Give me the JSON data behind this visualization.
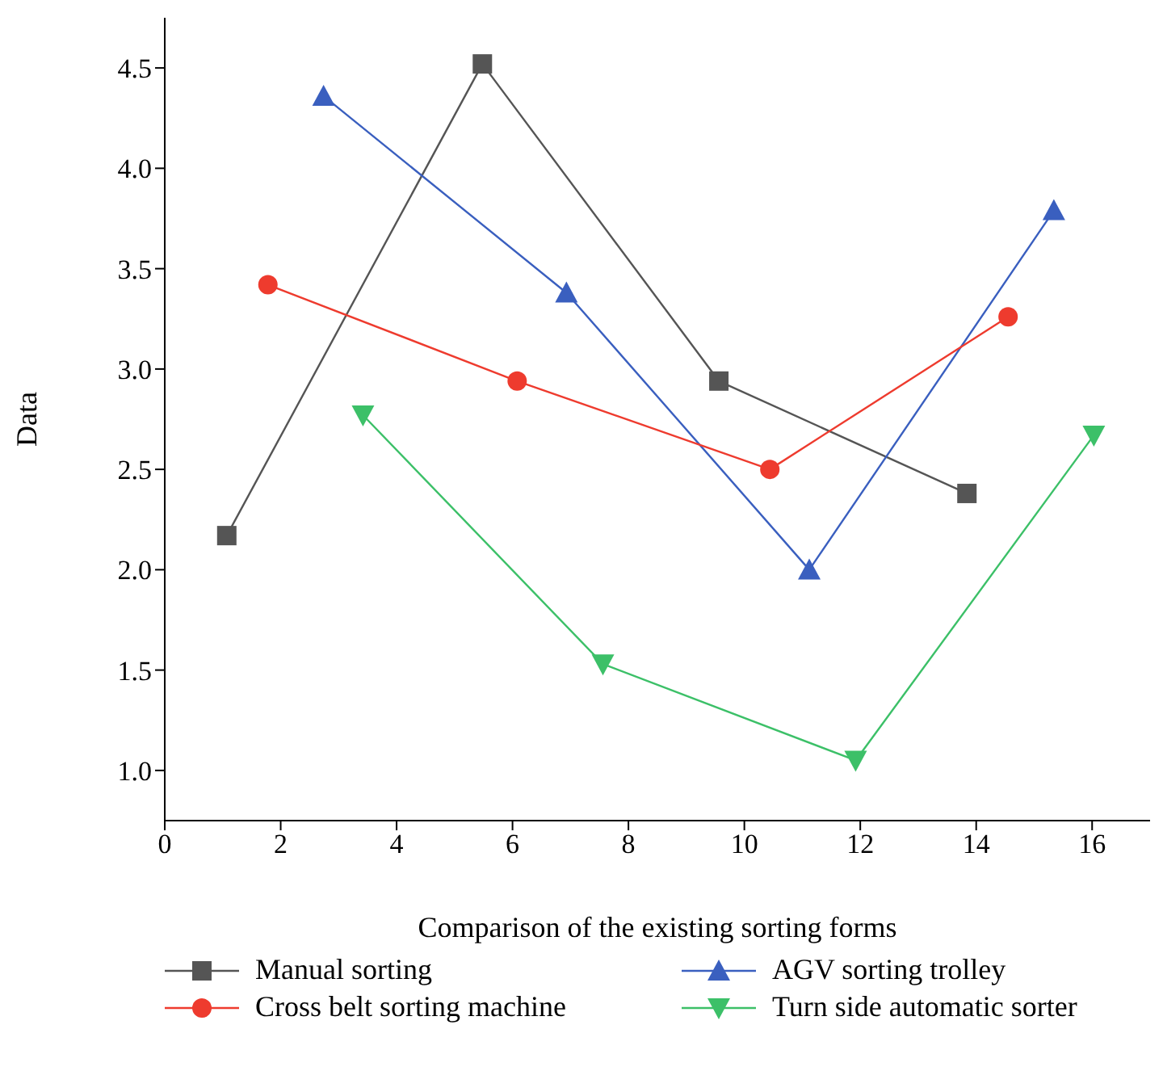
{
  "chart_data": {
    "type": "line",
    "xlabel": "Comparison of the existing sorting forms",
    "ylabel": "Data",
    "xlim": [
      0,
      17
    ],
    "xticks": [
      0,
      2,
      4,
      6,
      8,
      10,
      12,
      14,
      16
    ],
    "ylim": [
      0.75,
      4.75
    ],
    "yticks": [
      {
        "value": 1,
        "label": "1.0"
      },
      {
        "value": 1.5,
        "label": "1.5"
      },
      {
        "value": 2,
        "label": "2.0"
      },
      {
        "value": 2.5,
        "label": "2.5"
      },
      {
        "value": 3,
        "label": "3.0"
      },
      {
        "value": 3.5,
        "label": "3.5"
      },
      {
        "value": 4,
        "label": "4.0"
      },
      {
        "value": 4.5,
        "label": "4.5"
      }
    ],
    "grid": false,
    "legend": "bottom",
    "series": [
      {
        "name": "Manual sorting",
        "color": "#555555",
        "marker": "square",
        "x": [
          1.07,
          5.48,
          9.56,
          13.84
        ],
        "values": [
          2.17,
          4.52,
          2.94,
          2.38
        ]
      },
      {
        "name": "AGV sorting trolley",
        "color": "#3a5fbf",
        "marker": "triangle",
        "x": [
          2.74,
          6.93,
          11.12,
          15.34
        ],
        "values": [
          4.36,
          3.38,
          2.0,
          3.79
        ]
      },
      {
        "name": "Cross belt sorting machine",
        "color": "#ee3b2e",
        "marker": "circle",
        "x": [
          1.78,
          6.08,
          10.44,
          14.55
        ],
        "values": [
          3.42,
          2.94,
          2.5,
          3.26
        ]
      },
      {
        "name": "Turn side automatic sorter",
        "color": "#3cc068",
        "marker": "triangle-down",
        "x": [
          3.42,
          7.56,
          11.92,
          16.03
        ],
        "values": [
          2.77,
          1.53,
          1.05,
          2.67
        ]
      }
    ]
  }
}
